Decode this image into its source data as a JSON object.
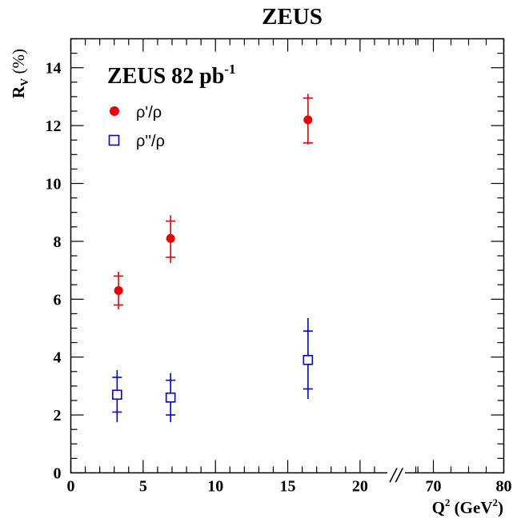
{
  "page": {
    "title": "ZEUS"
  },
  "panel_label": {
    "main": "ZEUS 82 pb",
    "sup": "-1"
  },
  "colors": {
    "rho_prime": "#ee0000",
    "rho_dprime": "#0000dd",
    "axis": "#000000"
  },
  "chart_data": {
    "type": "scatter",
    "title": "ZEUS",
    "xlabel": {
      "main": "Q",
      "sup": "2",
      "unit_open": " (GeV",
      "unit_sup": "2",
      "unit_close": ")"
    },
    "ylabel": {
      "main": "R",
      "sub": "V",
      "unit": " (%)"
    },
    "ylim": [
      0,
      15
    ],
    "y_ticks": [
      "0",
      "2",
      "4",
      "6",
      "8",
      "10",
      "12",
      "14"
    ],
    "x_ticks": [
      "0",
      "5",
      "10",
      "15",
      "20",
      "70",
      "80"
    ],
    "x_axis_break": "//",
    "grid": false,
    "legend_position": "top-left",
    "series": [
      {
        "name": "ρ'/ρ",
        "marker": "filled-circle",
        "color": "#ee0000",
        "points": [
          {
            "x": 3.3,
            "y": 6.3,
            "stat_low": 5.8,
            "stat_high": 6.8,
            "tot_low": 5.65,
            "tot_high": 6.95
          },
          {
            "x": 6.9,
            "y": 8.1,
            "stat_low": 7.45,
            "stat_high": 8.7,
            "tot_low": 7.25,
            "tot_high": 8.9
          },
          {
            "x": 16.4,
            "y": 12.2,
            "stat_low": 11.4,
            "stat_high": 12.95,
            "tot_low": 11.35,
            "tot_high": 13.1
          }
        ]
      },
      {
        "name": "ρ''/ρ",
        "marker": "open-square",
        "color": "#0000dd",
        "points": [
          {
            "x": 3.2,
            "y": 2.7,
            "stat_low": 2.1,
            "stat_high": 3.3,
            "tot_low": 1.75,
            "tot_high": 3.55
          },
          {
            "x": 6.9,
            "y": 2.6,
            "stat_low": 2.0,
            "stat_high": 3.2,
            "tot_low": 1.75,
            "tot_high": 3.45
          },
          {
            "x": 16.4,
            "y": 3.9,
            "stat_low": 2.9,
            "stat_high": 4.9,
            "tot_low": 2.55,
            "tot_high": 5.35
          }
        ]
      }
    ]
  }
}
